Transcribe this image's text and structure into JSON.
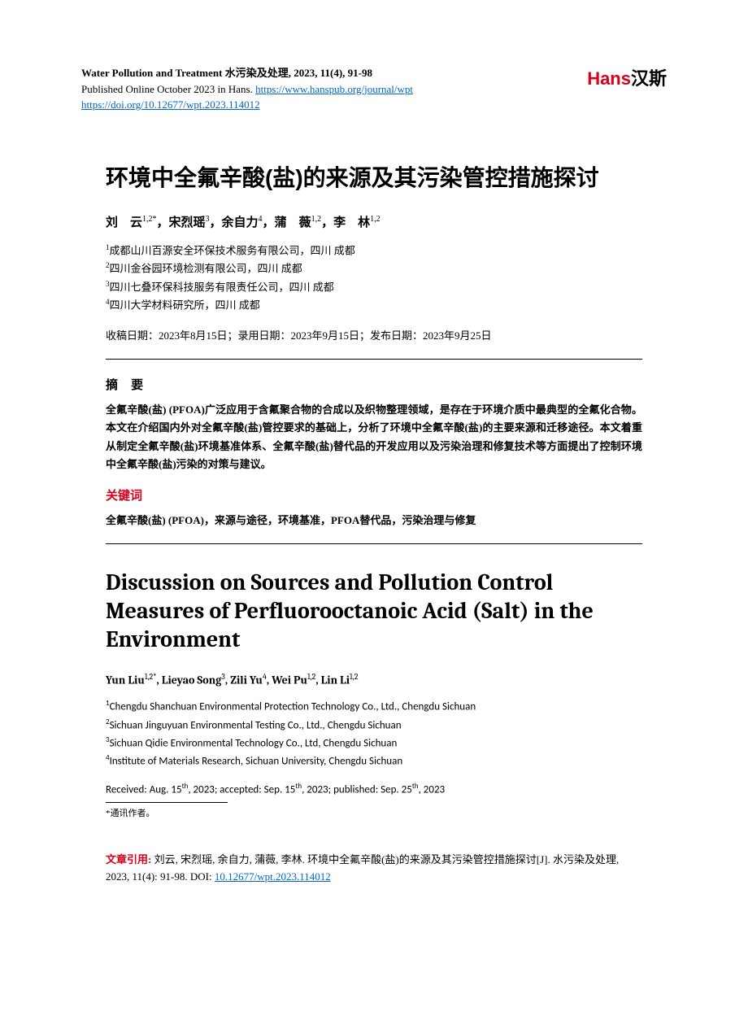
{
  "header": {
    "journal_bold": "Water Pollution and Treatment  水污染及处理, 2023, 11(4), 91-98",
    "pub_line_prefix": "Published Online October 2023 in Hans. ",
    "journal_url": "https://www.hanspub.org/journal/wpt",
    "doi_url": "https://doi.org/10.12677/wpt.2023.114012",
    "logo_hans": "Hans",
    "logo_cn": "汉斯"
  },
  "cn": {
    "title": "环境中全氟辛酸(盐)的来源及其污染管控措施探讨",
    "authors_html": "刘　云<sup>1,2*</sup>，宋烈瑶<sup>3</sup>，余自力<sup>4</sup>，蒲　薇<sup>1,2</sup>，李　林<sup>1,2</sup>",
    "affiliations": [
      "成都山川百源安全环保技术服务有限公司，四川 成都",
      "四川金谷园环境检测有限公司，四川 成都",
      "四川七叠环保科技服务有限责任公司，四川 成都",
      "四川大学材料研究所，四川 成都"
    ],
    "dates": "收稿日期：2023年8月15日；录用日期：2023年9月15日；发布日期：2023年9月25日",
    "abstract_head": "摘  要",
    "abstract": "全氟辛酸(盐) (PFOA)广泛应用于含氟聚合物的合成以及织物整理领域，是存在于环境介质中最典型的全氟化合物。本文在介绍国内外对全氟辛酸(盐)管控要求的基础上，分析了环境中全氟辛酸(盐)的主要来源和迁移途径。本文着重从制定全氟辛酸(盐)环境基准体系、全氟辛酸(盐)替代品的开发应用以及污染治理和修复技术等方面提出了控制环境中全氟辛酸(盐)污染的对策与建议。",
    "kw_head": "关键词",
    "keywords": "全氟辛酸(盐) (PFOA)，来源与途径，环境基准，PFOA替代品，污染治理与修复"
  },
  "en": {
    "title": "Discussion on Sources and Pollution Control Measures of Perfluorooctanoic Acid (Salt) in the Environment",
    "authors_html": "Yun Liu<sup>1,2*</sup>, Lieyao Song<sup>3</sup>, Zili Yu<sup>4</sup>, Wei Pu<sup>1,2</sup>, Lin Li<sup>1,2</sup>",
    "affiliations": [
      "Chengdu Shanchuan Environmental Protection Technology Co., Ltd., Chengdu Sichuan",
      "Sichuan Jinguyuan Environmental Testing Co., Ltd., Chengdu Sichuan",
      "Sichuan Qidie Environmental Technology Co., Ltd, Chengdu Sichuan",
      "Institute of Materials Research, Sichuan University, Chengdu Sichuan"
    ],
    "dates_html": "Received: Aug. 15<sup>th</sup>, 2023; accepted: Sep. 15<sup>th</sup>, 2023; published: Sep. 25<sup>th</sup>, 2023"
  },
  "footnote": "*通讯作者。",
  "citation": {
    "label": "文章引用: ",
    "text": "刘云, 宋烈瑶, 余自力, 蒲薇, 李林. 环境中全氟辛酸(盐)的来源及其污染管控措施探讨[J]. 水污染及处理, 2023, 11(4): 91-98. ",
    "doi_label": "DOI: ",
    "doi_text": "10.12677/wpt.2023.114012"
  },
  "colors": {
    "accent_red": "#d9001b",
    "link_blue": "#0066cc",
    "text": "#000000",
    "background": "#ffffff"
  },
  "typography": {
    "title_cn_fontsize_pt": 21,
    "title_en_fontsize_pt": 21,
    "body_fontsize_pt": 10,
    "author_fontsize_pt": 11
  }
}
